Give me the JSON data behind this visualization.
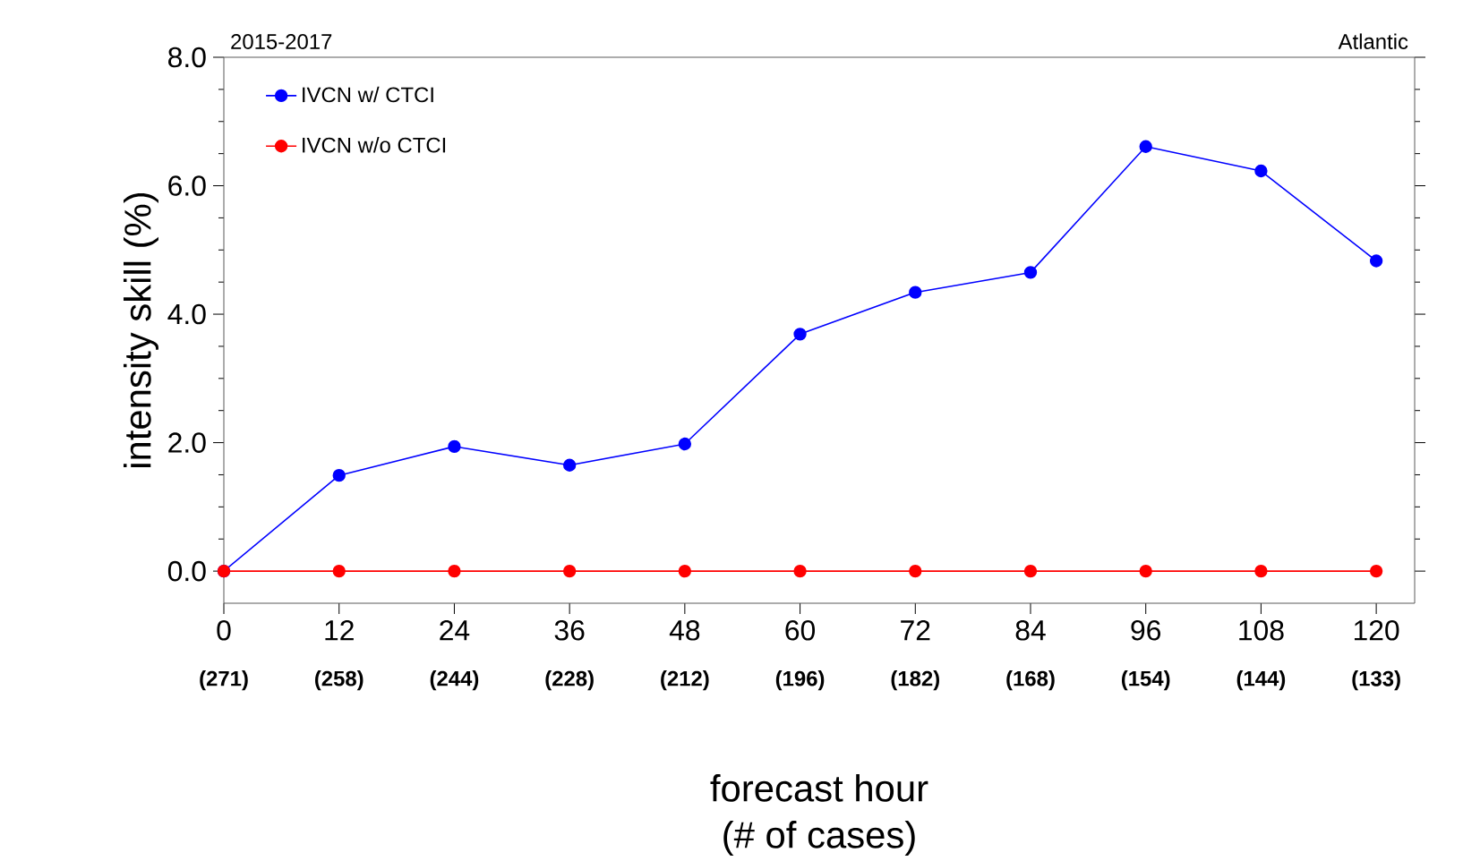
{
  "chart_data": {
    "type": "line",
    "title": "Atlantic",
    "subtitle": "2015-2017",
    "xlabel": "forecast hour",
    "ylabel": "intensity skill (%)",
    "x": [
      0,
      12,
      24,
      36,
      48,
      60,
      72,
      84,
      96,
      108,
      120
    ],
    "series": [
      {
        "name": "IVCN w/ CTCI",
        "color": "#0000ff",
        "values": [
          0,
          1.49,
          1.94,
          1.65,
          1.98,
          3.69,
          4.34,
          4.65,
          6.61,
          6.23,
          4.83
        ]
      },
      {
        "name": "IVCN w/o CTCI",
        "color": "#ff0000",
        "values": [
          0,
          0,
          0,
          0,
          0,
          0,
          0,
          0,
          0,
          0,
          0
        ]
      }
    ],
    "xlim": [
      0,
      124
    ],
    "ylim": [
      -0.5,
      8.0
    ],
    "xticks": [
      0,
      12,
      24,
      36,
      48,
      60,
      72,
      84,
      96,
      108,
      120
    ],
    "yticks": [
      {
        "value": 0,
        "label": "0.0"
      },
      {
        "value": 2,
        "label": "2.0"
      },
      {
        "value": 4,
        "label": "4.0"
      },
      {
        "value": 6,
        "label": "6.0"
      },
      {
        "value": 8,
        "label": "8.0"
      }
    ],
    "annotations": [
      "(271)",
      "(258)",
      "(244)",
      "(228)",
      "(212)",
      "(196)",
      "(182)",
      "(168)",
      "(154)",
      "(144)",
      "(133)",
      "(# of cases)"
    ],
    "legend": "top left",
    "grid": false,
    "marker": "circle",
    "line_style": "solid"
  }
}
